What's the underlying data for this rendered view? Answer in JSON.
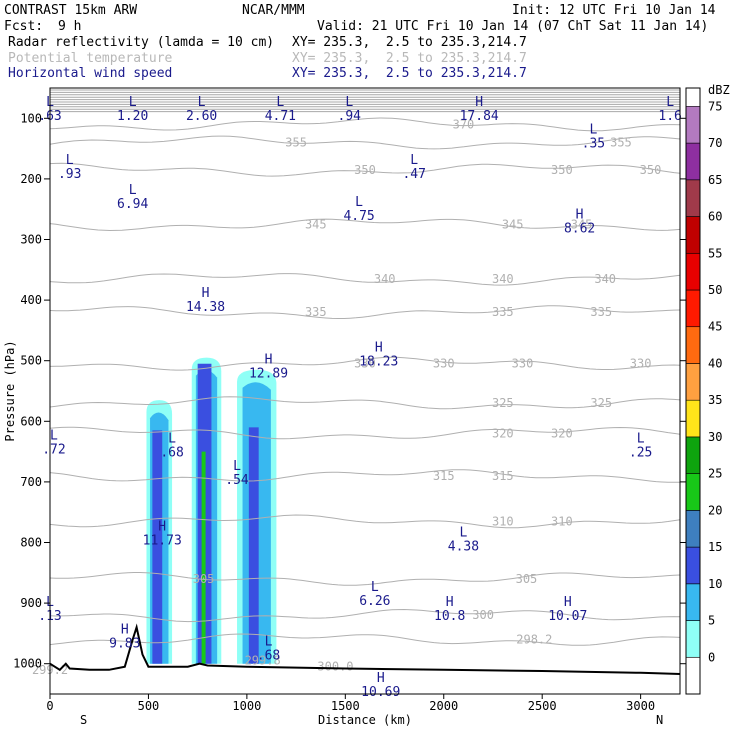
{
  "header": {
    "model": "CONTRAST 15km ARW",
    "org": "NCAR/MMM",
    "init": "Init: 12 UTC Fri 10 Jan 14",
    "fcst_label": "Fcst:",
    "fcst_value": "9 h",
    "valid": "Valid: 21 UTC Fri 10 Jan 14 (07 ChT Sat 11 Jan 14)",
    "fields": [
      {
        "name": "Radar reflectivity (lamda = 10 cm)",
        "xy": "XY= 235.3,  2.5 to 235.3,214.7",
        "color": "#000000"
      },
      {
        "name": "Potential temperature",
        "xy": "XY= 235.3,  2.5 to 235.3,214.7",
        "color": "#b8b8b8"
      },
      {
        "name": "Horizontal wind speed",
        "xy": "XY= 235.3,  2.5 to 235.3,214.7",
        "color": "#1a1a8c"
      }
    ]
  },
  "chart_data": {
    "type": "cross-section",
    "xlabel": "Distance (km)",
    "ylabel": "Pressure (hPa)",
    "xlim": [
      0,
      3200
    ],
    "ylim": [
      1050,
      50
    ],
    "x_ticks": [
      0,
      500,
      1000,
      1500,
      2000,
      2500,
      3000
    ],
    "y_ticks": [
      100,
      200,
      300,
      400,
      500,
      600,
      700,
      800,
      900,
      1000
    ],
    "x_end_labels": [
      "S",
      "N"
    ],
    "colorbar": {
      "unit": "dBZ",
      "levels": [
        0,
        5,
        10,
        15,
        20,
        25,
        30,
        35,
        40,
        45,
        50,
        55,
        60,
        65,
        70,
        75
      ],
      "colors": [
        "#ffffff",
        "#8ffff6",
        "#38b8f0",
        "#3a4fe0",
        "#3e7fbf",
        "#18c818",
        "#0ea40e",
        "#ffe41a",
        "#ffa040",
        "#ff6a10",
        "#ff1a00",
        "#e80000",
        "#c00000",
        "#a03a4a",
        "#8e2fa0",
        "#b37ac0"
      ]
    },
    "isentropes": [
      {
        "label": "370",
        "p": 110
      },
      {
        "label": "355",
        "p": 140
      },
      {
        "label": "350",
        "p": 185
      },
      {
        "label": "345",
        "p": 275
      },
      {
        "label": "340",
        "p": 365
      },
      {
        "label": "335",
        "p": 420
      },
      {
        "label": "330",
        "p": 505
      },
      {
        "label": "325",
        "p": 570
      },
      {
        "label": "320",
        "p": 620
      },
      {
        "label": "315",
        "p": 690
      },
      {
        "label": "310",
        "p": 765
      },
      {
        "label": "305",
        "p": 860
      },
      {
        "label": "300",
        "p": 920
      },
      {
        "label": "298.2",
        "p": 960
      },
      {
        "label": "299.8",
        "p": 995
      },
      {
        "label": "300.0",
        "p": 1005
      },
      {
        "label": "299.2",
        "p": 1010
      }
    ],
    "wind_extrema": [
      {
        "type": "L",
        "value": ".63",
        "x": 0,
        "p": 80
      },
      {
        "type": "L",
        "value": "1.20",
        "x": 420,
        "p": 80
      },
      {
        "type": "L",
        "value": "2.60",
        "x": 770,
        "p": 80
      },
      {
        "type": "L",
        "value": "4.71",
        "x": 1170,
        "p": 80
      },
      {
        "type": "L",
        "value": ".94",
        "x": 1520,
        "p": 80
      },
      {
        "type": "H",
        "value": "17.84",
        "x": 2180,
        "p": 80
      },
      {
        "type": "L",
        "value": "1.6",
        "x": 3150,
        "p": 80
      },
      {
        "type": "L",
        "value": ".35",
        "x": 2760,
        "p": 125
      },
      {
        "type": "L",
        "value": ".93",
        "x": 100,
        "p": 175
      },
      {
        "type": "L",
        "value": ".47",
        "x": 1850,
        "p": 175
      },
      {
        "type": "L",
        "value": "6.94",
        "x": 420,
        "p": 225
      },
      {
        "type": "L",
        "value": "4.75",
        "x": 1570,
        "p": 245
      },
      {
        "type": "H",
        "value": "8.62",
        "x": 2690,
        "p": 265
      },
      {
        "type": "H",
        "value": "14.38",
        "x": 790,
        "p": 395
      },
      {
        "type": "H",
        "value": "18.23",
        "x": 1670,
        "p": 485
      },
      {
        "type": "H",
        "value": "12.89",
        "x": 1110,
        "p": 505
      },
      {
        "type": "L",
        "value": ".72",
        "x": 20,
        "p": 630
      },
      {
        "type": "L",
        "value": ".68",
        "x": 620,
        "p": 635
      },
      {
        "type": "L",
        "value": ".25",
        "x": 3000,
        "p": 635
      },
      {
        "type": "L",
        "value": ".54",
        "x": 950,
        "p": 680
      },
      {
        "type": "H",
        "value": "11.73",
        "x": 570,
        "p": 780
      },
      {
        "type": "L",
        "value": "4.38",
        "x": 2100,
        "p": 790
      },
      {
        "type": "L",
        "value": "6.26",
        "x": 1650,
        "p": 880
      },
      {
        "type": "H",
        "value": "10.8",
        "x": 2030,
        "p": 905
      },
      {
        "type": "H",
        "value": "10.07",
        "x": 2630,
        "p": 905
      },
      {
        "type": "L",
        "value": ".13",
        "x": 0,
        "p": 905
      },
      {
        "type": "H",
        "value": "9.83",
        "x": 380,
        "p": 950
      },
      {
        "type": "L",
        "value": ".68",
        "x": 1110,
        "p": 970
      },
      {
        "type": "H",
        "value": "10.69",
        "x": 1680,
        "p": 1030
      }
    ],
    "reflectivity_cells": [
      {
        "x0": 490,
        "x1": 620,
        "ptop": 565,
        "pbot": 1000,
        "core_x0": 520,
        "core_x1": 570,
        "core_ptop": 615
      },
      {
        "x0": 720,
        "x1": 870,
        "ptop": 495,
        "pbot": 1000,
        "core_x0": 750,
        "core_x1": 820,
        "core_ptop": 505
      },
      {
        "x0": 950,
        "x1": 1150,
        "ptop": 515,
        "pbot": 1000,
        "core_x0": 1010,
        "core_x1": 1060,
        "core_ptop": 610
      }
    ],
    "terrain": [
      [
        0,
        1000
      ],
      [
        50,
        1010
      ],
      [
        80,
        1000
      ],
      [
        100,
        1008
      ],
      [
        200,
        1010
      ],
      [
        300,
        1010
      ],
      [
        380,
        1005
      ],
      [
        420,
        960
      ],
      [
        440,
        940
      ],
      [
        470,
        985
      ],
      [
        500,
        1005
      ],
      [
        700,
        1005
      ],
      [
        760,
        1000
      ],
      [
        800,
        1003
      ],
      [
        1000,
        1005
      ],
      [
        1500,
        1008
      ],
      [
        2000,
        1010
      ],
      [
        2500,
        1012
      ],
      [
        3000,
        1015
      ],
      [
        3200,
        1017
      ]
    ]
  }
}
